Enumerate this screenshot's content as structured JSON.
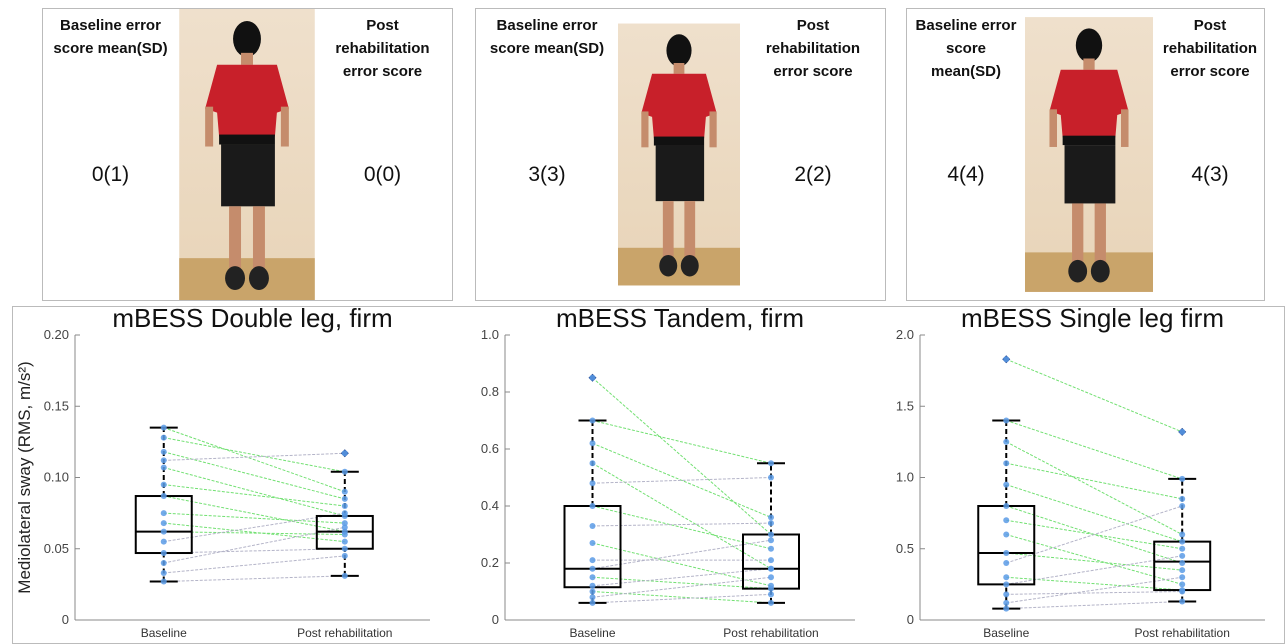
{
  "cards": [
    {
      "baseline_header": "Baseline error score mean(SD)",
      "post_header": "Post rehabilitation error score",
      "baseline_value": "0(1)",
      "post_value": "0(0)"
    },
    {
      "baseline_header": "Baseline error score mean(SD)",
      "post_header": "Post rehabilitation error score",
      "baseline_value": "3(3)",
      "post_value": "2(2)"
    },
    {
      "baseline_header": "Baseline error score mean(SD)",
      "post_header": "Post rehabilitation error score",
      "baseline_value": "4(4)",
      "post_value": "4(3)"
    }
  ],
  "chart_data": [
    {
      "type": "box",
      "title": "mBESS Double leg, firm",
      "ylabel": "Mediolateral sway (RMS, m/s²)",
      "categories": [
        "Baseline",
        "Post rehabilitation"
      ],
      "boxes": [
        {
          "min": 0.027,
          "q1": 0.047,
          "median": 0.062,
          "q3": 0.087,
          "max": 0.135,
          "outliers": []
        },
        {
          "min": 0.031,
          "q1": 0.05,
          "median": 0.062,
          "q3": 0.073,
          "max": 0.104,
          "outliers": [
            0.117
          ]
        }
      ],
      "pairs": {
        "baseline": [
          0.135,
          0.128,
          0.118,
          0.112,
          0.107,
          0.095,
          0.087,
          0.075,
          0.068,
          0.062,
          0.055,
          0.047,
          0.04,
          0.033,
          0.027
        ],
        "post": [
          0.09,
          0.104,
          0.085,
          0.117,
          0.073,
          0.08,
          0.062,
          0.068,
          0.055,
          0.06,
          0.075,
          0.05,
          0.065,
          0.045,
          0.031
        ]
      },
      "ylim": [
        0,
        0.2
      ],
      "yticks": [
        0,
        0.05,
        {
          "value": 0.1,
          "label": "0.10"
        },
        0.15,
        {
          "value": 0.2,
          "label": "0.20"
        }
      ],
      "point_color": "#5a9be6",
      "outlier_color": "#1b3f8a",
      "line_colors": {
        "down": "#72e072",
        "up": "#b4b4c8"
      }
    },
    {
      "type": "box",
      "title": "mBESS Tandem, firm",
      "categories": [
        "Baseline",
        "Post rehabilitation"
      ],
      "boxes": [
        {
          "min": 0.06,
          "q1": 0.115,
          "median": 0.18,
          "q3": 0.4,
          "max": 0.7,
          "outliers": [
            0.85
          ]
        },
        {
          "min": 0.06,
          "q1": 0.11,
          "median": 0.18,
          "q3": 0.3,
          "max": 0.55,
          "outliers": []
        }
      ],
      "pairs": {
        "baseline": [
          0.85,
          0.7,
          0.62,
          0.55,
          0.48,
          0.4,
          0.33,
          0.27,
          0.21,
          0.18,
          0.15,
          0.12,
          0.1,
          0.08,
          0.06
        ],
        "post": [
          0.3,
          0.55,
          0.36,
          0.18,
          0.5,
          0.25,
          0.34,
          0.12,
          0.21,
          0.28,
          0.11,
          0.18,
          0.06,
          0.15,
          0.09
        ]
      },
      "ylim": [
        0,
        1
      ],
      "yticks": [
        0,
        0.2,
        0.4,
        0.6,
        0.8,
        {
          "value": 1,
          "label": "1.0"
        }
      ],
      "point_color": "#5a9be6",
      "outlier_color": "#1b3f8a",
      "line_colors": {
        "down": "#72e072",
        "up": "#b4b4c8"
      }
    },
    {
      "type": "box",
      "title": "mBESS Single leg firm",
      "categories": [
        "Baseline",
        "Post rehabilitation"
      ],
      "boxes": [
        {
          "min": 0.08,
          "q1": 0.25,
          "median": 0.47,
          "q3": 0.8,
          "max": 1.4,
          "outliers": [
            1.83
          ]
        },
        {
          "min": 0.13,
          "q1": 0.21,
          "median": 0.41,
          "q3": 0.55,
          "max": 0.99,
          "outliers": [
            1.32
          ]
        }
      ],
      "pairs": {
        "baseline": [
          1.83,
          1.4,
          1.25,
          1.1,
          0.95,
          0.8,
          0.7,
          0.6,
          0.47,
          0.4,
          0.3,
          0.25,
          0.18,
          0.12,
          0.08
        ],
        "post": [
          1.32,
          0.99,
          0.6,
          0.85,
          0.55,
          0.4,
          0.5,
          0.25,
          0.35,
          0.8,
          0.21,
          0.45,
          0.2,
          0.3,
          0.13
        ]
      },
      "ylim": [
        0,
        2
      ],
      "yticks": [
        0,
        0.5,
        {
          "value": 1,
          "label": "1.0"
        },
        1.5,
        {
          "value": 2,
          "label": "2.0"
        }
      ],
      "point_color": "#5a9be6",
      "outlier_color": "#1b3f8a",
      "line_colors": {
        "down": "#72e072",
        "up": "#b4b4c8"
      }
    }
  ]
}
